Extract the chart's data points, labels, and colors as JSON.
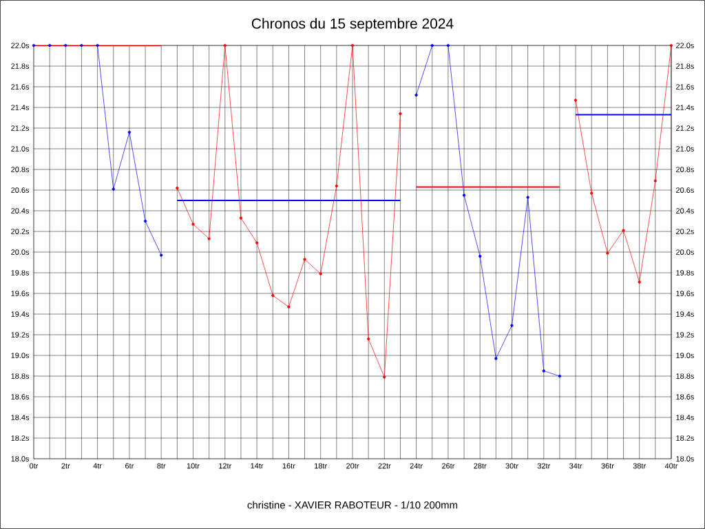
{
  "chart_data": {
    "type": "line",
    "title": "Chronos du 15 septembre 2024",
    "annotations": [
      "christine - XAVIER RABOTEUR - 1/10 200mm"
    ],
    "xlim": [
      0,
      40
    ],
    "ylim": [
      18.0,
      22.0
    ],
    "y2lim": [
      18.0,
      22.0
    ],
    "xticks": [
      {
        "value": 0,
        "label": "0tr"
      },
      {
        "value": 1,
        "label": null
      },
      {
        "value": 2,
        "label": "2tr"
      },
      {
        "value": 3,
        "label": null
      },
      {
        "value": 4,
        "label": "4tr"
      },
      {
        "value": 5,
        "label": null
      },
      {
        "value": 6,
        "label": "6tr"
      },
      {
        "value": 7,
        "label": null
      },
      {
        "value": 8,
        "label": "8tr"
      },
      {
        "value": 9,
        "label": null
      },
      {
        "value": 10,
        "label": "10tr"
      },
      {
        "value": 11,
        "label": null
      },
      {
        "value": 12,
        "label": "12tr"
      },
      {
        "value": 13,
        "label": null
      },
      {
        "value": 14,
        "label": "14tr"
      },
      {
        "value": 15,
        "label": null
      },
      {
        "value": 16,
        "label": "16tr"
      },
      {
        "value": 17,
        "label": null
      },
      {
        "value": 18,
        "label": "18tr"
      },
      {
        "value": 19,
        "label": null
      },
      {
        "value": 20,
        "label": "20tr"
      },
      {
        "value": 21,
        "label": null
      },
      {
        "value": 22,
        "label": "22tr"
      },
      {
        "value": 23,
        "label": null
      },
      {
        "value": 24,
        "label": "24tr"
      },
      {
        "value": 25,
        "label": null
      },
      {
        "value": 26,
        "label": "26tr"
      },
      {
        "value": 27,
        "label": null
      },
      {
        "value": 28,
        "label": "28tr"
      },
      {
        "value": 29,
        "label": null
      },
      {
        "value": 30,
        "label": "30tr"
      },
      {
        "value": 31,
        "label": null
      },
      {
        "value": 32,
        "label": "32tr"
      },
      {
        "value": 33,
        "label": null
      },
      {
        "value": 34,
        "label": "34tr"
      },
      {
        "value": 35,
        "label": null
      },
      {
        "value": 36,
        "label": "36tr"
      },
      {
        "value": 37,
        "label": null
      },
      {
        "value": 38,
        "label": "38tr"
      },
      {
        "value": 39,
        "label": null
      },
      {
        "value": 40,
        "label": "40tr"
      }
    ],
    "yticks": [
      {
        "value": 18.0,
        "label": "18.0s"
      },
      {
        "value": 18.2,
        "label": "18.2s"
      },
      {
        "value": 18.4,
        "label": "18.4s"
      },
      {
        "value": 18.6,
        "label": "18.6s"
      },
      {
        "value": 18.8,
        "label": "18.8s"
      },
      {
        "value": 19.0,
        "label": "19.0s"
      },
      {
        "value": 19.2,
        "label": "19.2s"
      },
      {
        "value": 19.4,
        "label": "19.4s"
      },
      {
        "value": 19.6,
        "label": "19.6s"
      },
      {
        "value": 19.8,
        "label": "19.8s"
      },
      {
        "value": 20.0,
        "label": "20.0s"
      },
      {
        "value": 20.2,
        "label": "20.2s"
      },
      {
        "value": 20.4,
        "label": "20.4s"
      },
      {
        "value": 20.6,
        "label": "20.6s"
      },
      {
        "value": 20.8,
        "label": "20.8s"
      },
      {
        "value": 21.0,
        "label": "21.0s"
      },
      {
        "value": 21.2,
        "label": "21.2s"
      },
      {
        "value": 21.4,
        "label": "21.4s"
      },
      {
        "value": 21.6,
        "label": "21.6s"
      },
      {
        "value": 21.8,
        "label": "21.8s"
      },
      {
        "value": 22.0,
        "label": "22.0s"
      }
    ],
    "y2ticks": [
      {
        "value": 18.0,
        "label": "18.0s"
      },
      {
        "value": 18.2,
        "label": "18.2s"
      },
      {
        "value": 18.4,
        "label": "18.4s"
      },
      {
        "value": 18.6,
        "label": "18.6s"
      },
      {
        "value": 18.8,
        "label": "18.8s"
      },
      {
        "value": 19.0,
        "label": "19.0s"
      },
      {
        "value": 19.2,
        "label": "19.2s"
      },
      {
        "value": 19.4,
        "label": "19.4s"
      },
      {
        "value": 19.6,
        "label": "19.6s"
      },
      {
        "value": 19.8,
        "label": "19.8s"
      },
      {
        "value": 20.0,
        "label": "20.0s"
      },
      {
        "value": 20.2,
        "label": "20.2s"
      },
      {
        "value": 20.4,
        "label": "20.4s"
      },
      {
        "value": 20.6,
        "label": "20.6s"
      },
      {
        "value": 20.8,
        "label": "20.8s"
      },
      {
        "value": 21.0,
        "label": "21.0s"
      },
      {
        "value": 21.2,
        "label": "21.2s"
      },
      {
        "value": 21.4,
        "label": "21.4s"
      },
      {
        "value": 21.6,
        "label": "21.6s"
      },
      {
        "value": 21.8,
        "label": "21.8s"
      },
      {
        "value": 22.0,
        "label": "22.0s"
      }
    ],
    "grid": true,
    "marker": "circle",
    "series": [
      {
        "color": "#0000ff",
        "x": [
          0,
          1,
          2,
          3,
          4,
          5,
          6,
          7,
          8
        ],
        "values": [
          22.0,
          22.0,
          22.0,
          22.0,
          22.0,
          20.61,
          21.16,
          20.3,
          19.97
        ]
      },
      {
        "color": "#ff0000",
        "x": [
          9,
          10,
          11,
          12,
          13,
          14,
          15,
          16,
          17,
          18,
          19,
          20,
          21,
          22,
          23
        ],
        "values": [
          20.62,
          20.27,
          20.13,
          22.0,
          20.33,
          20.09,
          19.58,
          19.47,
          19.93,
          19.79,
          20.64,
          22.0,
          19.16,
          18.79,
          21.34
        ]
      },
      {
        "color": "#0000ff",
        "x": [
          24,
          25,
          26,
          27,
          28,
          29,
          30,
          31,
          32,
          33
        ],
        "values": [
          21.52,
          22.0,
          22.0,
          20.55,
          19.96,
          18.97,
          19.29,
          20.53,
          18.85,
          18.8
        ]
      },
      {
        "color": "#ff0000",
        "x": [
          34,
          35,
          36,
          37,
          38,
          39,
          40
        ],
        "values": [
          21.47,
          20.57,
          19.99,
          20.21,
          19.71,
          20.69,
          22.0
        ]
      },
      {
        "color": "#ff0000",
        "marker": "none",
        "x": [
          0,
          8
        ],
        "values": [
          22.0,
          22.0
        ]
      },
      {
        "color": "#0000ff",
        "marker": "none",
        "x": [
          9,
          23
        ],
        "values": [
          20.5,
          20.5
        ]
      },
      {
        "color": "#ff0000",
        "marker": "none",
        "x": [
          24,
          33
        ],
        "values": [
          20.63,
          20.63
        ]
      },
      {
        "color": "#0000ff",
        "marker": "none",
        "x": [
          34,
          40
        ],
        "values": [
          21.33,
          21.33
        ]
      }
    ]
  }
}
